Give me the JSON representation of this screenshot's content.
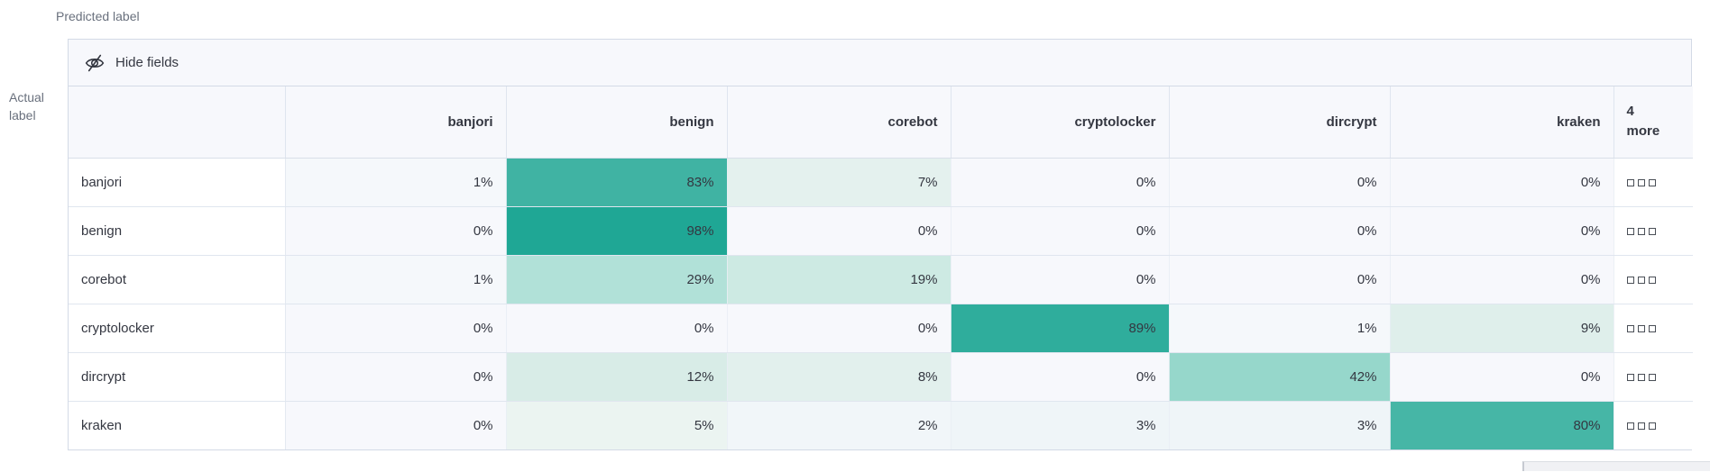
{
  "page": {
    "predicted_axis_label": "Predicted label",
    "actual_axis_label_line1": "Actual",
    "actual_axis_label_line2": "label"
  },
  "toolbar": {
    "hide_fields_label": "Hide fields",
    "hide_fields_icon": "eye-closed-icon"
  },
  "grid": {
    "column_headers": [
      "banjori",
      "benign",
      "corebot",
      "cryptolocker",
      "dircrypt",
      "kraken"
    ],
    "more_column_header": "4 more",
    "row_actions_icon": "ellipsis-squares-icon",
    "rows": [
      {
        "label": "banjori",
        "cells": [
          {
            "value": "1%",
            "color": "#f5f8fb"
          },
          {
            "value": "83%",
            "color": "#40b3a3"
          },
          {
            "value": "7%",
            "color": "#e4f1ee"
          },
          {
            "value": "0%",
            "color": "#f7f8fc"
          },
          {
            "value": "0%",
            "color": "#f7f8fc"
          },
          {
            "value": "0%",
            "color": "#f7f8fc"
          }
        ]
      },
      {
        "label": "benign",
        "cells": [
          {
            "value": "0%",
            "color": "#f7f8fc"
          },
          {
            "value": "98%",
            "color": "#1fa795"
          },
          {
            "value": "0%",
            "color": "#f7f8fc"
          },
          {
            "value": "0%",
            "color": "#f7f8fc"
          },
          {
            "value": "0%",
            "color": "#f7f8fc"
          },
          {
            "value": "0%",
            "color": "#f7f8fc"
          }
        ]
      },
      {
        "label": "corebot",
        "cells": [
          {
            "value": "1%",
            "color": "#f5f8fb"
          },
          {
            "value": "29%",
            "color": "#b1e1d8"
          },
          {
            "value": "19%",
            "color": "#cdeae3"
          },
          {
            "value": "0%",
            "color": "#f7f8fc"
          },
          {
            "value": "0%",
            "color": "#f7f8fc"
          },
          {
            "value": "0%",
            "color": "#f7f8fc"
          }
        ]
      },
      {
        "label": "cryptolocker",
        "cells": [
          {
            "value": "0%",
            "color": "#f7f8fc"
          },
          {
            "value": "0%",
            "color": "#f7f8fc"
          },
          {
            "value": "0%",
            "color": "#f7f8fc"
          },
          {
            "value": "89%",
            "color": "#2fad9c"
          },
          {
            "value": "1%",
            "color": "#f5f8fb"
          },
          {
            "value": "9%",
            "color": "#dfefeb"
          }
        ]
      },
      {
        "label": "dircrypt",
        "cells": [
          {
            "value": "0%",
            "color": "#f7f8fc"
          },
          {
            "value": "12%",
            "color": "#d8ece7"
          },
          {
            "value": "8%",
            "color": "#e2f0ed"
          },
          {
            "value": "0%",
            "color": "#f7f8fc"
          },
          {
            "value": "42%",
            "color": "#96d7cb"
          },
          {
            "value": "0%",
            "color": "#f7f8fc"
          }
        ]
      },
      {
        "label": "kraken",
        "cells": [
          {
            "value": "0%",
            "color": "#f7f8fc"
          },
          {
            "value": "5%",
            "color": "#ebf4f1"
          },
          {
            "value": "2%",
            "color": "#f1f6f9"
          },
          {
            "value": "3%",
            "color": "#eff5f8"
          },
          {
            "value": "3%",
            "color": "#eff5f8"
          },
          {
            "value": "80%",
            "color": "#46b6a6"
          }
        ]
      }
    ]
  },
  "colors": {
    "accent_max": "#1fa795",
    "zero_cell": "#f7f8fc",
    "header_bg": "#f7f8fc",
    "outer_border": "#d3dae6",
    "row_border": "#e0e6ef",
    "text": "#343741",
    "muted_text": "#69707d"
  },
  "chart_data": {
    "type": "heatmap",
    "xlabel": "Predicted label",
    "ylabel": "Actual label",
    "x_categories": [
      "banjori",
      "benign",
      "corebot",
      "cryptolocker",
      "dircrypt",
      "kraken"
    ],
    "y_categories": [
      "banjori",
      "benign",
      "corebot",
      "cryptolocker",
      "dircrypt",
      "kraken"
    ],
    "hidden_columns_indicator": "4 more",
    "values_percent": [
      [
        1,
        83,
        7,
        0,
        0,
        0
      ],
      [
        0,
        98,
        0,
        0,
        0,
        0
      ],
      [
        1,
        29,
        19,
        0,
        0,
        0
      ],
      [
        0,
        0,
        0,
        89,
        1,
        9
      ],
      [
        0,
        12,
        8,
        0,
        42,
        0
      ],
      [
        0,
        5,
        2,
        3,
        3,
        80
      ]
    ],
    "color_range": [
      "#f7f8fc",
      "#1fa795"
    ],
    "legend": "off",
    "grid": "on"
  }
}
